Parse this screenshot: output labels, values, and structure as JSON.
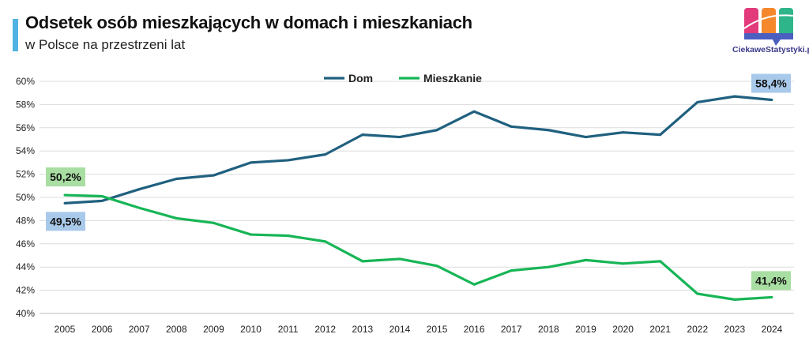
{
  "header": {
    "title": "Odsetek osób mieszkających w domach i mieszkaniach",
    "subtitle": "w Polsce na przestrzeni lat",
    "logo_text": "CiekaweStatystyki.pl",
    "accent_color": "#4fb3e3"
  },
  "chart_data": {
    "type": "line",
    "title": "Odsetek osób mieszkających w domach i mieszkaniach",
    "subtitle": "w Polsce na przestrzeni lat",
    "xlabel": "",
    "ylabel": "",
    "x": [
      "2005",
      "2006",
      "2007",
      "2008",
      "2009",
      "2010",
      "2011",
      "2012",
      "2013",
      "2014",
      "2015",
      "2016",
      "2017",
      "2018",
      "2019",
      "2020",
      "2021",
      "2022",
      "2023",
      "2024"
    ],
    "ylim": [
      40,
      60
    ],
    "yticks": [
      "40%",
      "42%",
      "44%",
      "46%",
      "48%",
      "50%",
      "52%",
      "54%",
      "56%",
      "58%",
      "60%"
    ],
    "grid": true,
    "legend_position": "top-center",
    "series": [
      {
        "name": "Dom",
        "color": "#20607f",
        "values": [
          49.5,
          49.7,
          50.7,
          51.6,
          51.9,
          53.0,
          53.2,
          53.7,
          55.4,
          55.2,
          55.8,
          57.4,
          56.1,
          55.8,
          55.2,
          55.6,
          55.4,
          58.2,
          58.7,
          58.4
        ]
      },
      {
        "name": "Mieszkanie",
        "color": "#17b556",
        "values": [
          50.2,
          50.1,
          49.1,
          48.2,
          47.8,
          46.8,
          46.7,
          46.2,
          44.5,
          44.7,
          44.1,
          42.5,
          43.7,
          44.0,
          44.6,
          44.3,
          44.5,
          41.7,
          41.2,
          41.4
        ]
      }
    ],
    "annotations": [
      {
        "series": "Dom",
        "x": "2005",
        "text": "49,5%",
        "bg": "#a9c9ea"
      },
      {
        "series": "Mieszkanie",
        "x": "2005",
        "text": "50,2%",
        "bg": "#a9dea2"
      },
      {
        "series": "Dom",
        "x": "2024",
        "text": "58,4%",
        "bg": "#a9c9ea"
      },
      {
        "series": "Mieszkanie",
        "x": "2024",
        "text": "41,4%",
        "bg": "#a9dea2"
      }
    ]
  }
}
